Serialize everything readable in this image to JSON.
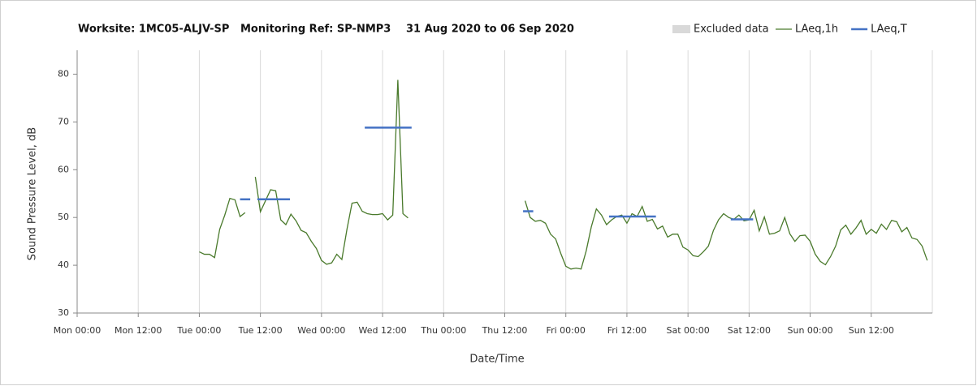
{
  "chart_data": {
    "type": "line",
    "title_parts": [
      "Worksite: 1MC05-ALJV-SP",
      "Monitoring Ref: SP-NMP3",
      "31 Aug 2020 to 06 Sep 2020"
    ],
    "x_label": "Date/Time",
    "y_label": "Sound Pressure Level, dB",
    "excluded": {
      "name": "Excluded data",
      "color": "#d9d9d9"
    },
    "x": [
      24,
      25,
      26,
      27,
      28,
      29,
      30,
      31,
      32,
      33,
      34,
      35,
      36,
      37,
      38,
      39,
      40,
      41,
      42,
      43,
      44,
      45,
      46,
      47,
      48,
      49,
      50,
      51,
      52,
      53,
      54,
      55,
      56,
      57,
      58,
      59,
      60,
      61,
      62,
      63,
      64,
      65,
      66,
      67,
      68,
      69,
      70,
      71,
      72,
      73,
      74,
      75,
      76,
      77,
      78,
      79,
      80,
      81,
      82,
      83,
      84,
      85,
      86,
      87,
      88,
      89,
      90,
      91,
      92,
      93,
      94,
      95,
      96,
      97,
      98,
      99,
      100,
      101,
      102,
      103,
      104,
      105,
      106,
      107,
      108,
      109,
      110,
      111,
      112,
      113,
      114,
      115,
      116,
      117,
      118,
      119,
      120,
      121,
      122,
      123,
      124,
      125,
      126,
      127,
      128,
      129,
      130,
      131,
      132,
      133,
      134,
      135,
      136,
      137,
      138,
      139,
      140,
      141,
      142,
      143,
      144,
      145,
      146,
      147,
      148,
      149,
      150,
      151,
      152,
      153,
      154,
      155,
      156,
      157,
      158,
      159,
      160,
      161,
      162,
      163,
      164,
      165,
      166,
      167
    ],
    "series": [
      {
        "name": "LAeq,1h",
        "color": "#4a7a2c",
        "values": [
          42.8,
          42.3,
          42.3,
          41.6,
          47.5,
          50.5,
          54,
          53.7,
          50.2,
          51,
          null,
          58.5,
          51.2,
          53.5,
          55.8,
          55.6,
          49.5,
          48.5,
          50.7,
          49.3,
          47.3,
          46.8,
          45,
          43.5,
          41,
          40.2,
          40.5,
          42.3,
          41.2,
          47.5,
          53,
          53.2,
          51.3,
          50.8,
          50.6,
          50.6,
          50.8,
          49.5,
          50.5,
          78.8,
          50.8,
          49.9,
          null,
          null,
          null,
          null,
          null,
          null,
          null,
          null,
          null,
          null,
          null,
          null,
          null,
          null,
          null,
          null,
          null,
          null,
          null,
          null,
          null,
          null,
          53.5,
          50,
          49.2,
          49.4,
          48.8,
          46.5,
          45.5,
          42.5,
          39.8,
          39.2,
          39.4,
          39.2,
          43,
          48,
          51.8,
          50.5,
          48.5,
          49.5,
          50.2,
          50.5,
          48.8,
          50.8,
          50.2,
          52.3,
          49.2,
          49.6,
          47.6,
          48.2,
          45.9,
          46.5,
          46.5,
          43.8,
          43.2,
          42,
          41.8,
          42.8,
          44,
          47.3,
          49.5,
          50.8,
          50,
          49.6,
          50.5,
          49.3,
          49.5,
          51.5,
          47.2,
          50.1,
          46.5,
          46.7,
          47.2,
          50,
          46.6,
          45,
          46.2,
          46.3,
          45,
          42.3,
          40.8,
          40.1,
          41.8,
          44,
          47.4,
          48.4,
          46.5,
          47.8,
          49.4,
          46.5,
          47.5,
          46.7,
          48.6,
          47.5,
          49.4,
          49.1,
          47,
          47.9,
          45.7,
          45.4,
          44,
          41
        ]
      },
      {
        "name": "LAeq,T",
        "color": "#4472c4",
        "segments": [
          {
            "x": [
              32,
              34
            ],
            "value": 53.8
          },
          {
            "x": [
              35.4,
              41.8
            ],
            "value": 53.8
          },
          {
            "x": [
              56.5,
              65.7
            ],
            "value": 68.8
          },
          {
            "x": [
              87.6,
              89.6
            ],
            "value": 51.3
          },
          {
            "x": [
              104.5,
              113.7
            ],
            "value": 50.2
          },
          {
            "x": [
              128.4,
              132.8
            ],
            "value": 49.6
          }
        ]
      }
    ],
    "xlim": [
      0,
      168
    ],
    "xticks": [
      {
        "value": 0,
        "label": "Mon 00:00"
      },
      {
        "value": 12,
        "label": "Mon 12:00"
      },
      {
        "value": 24,
        "label": "Tue 00:00"
      },
      {
        "value": 36,
        "label": "Tue 12:00"
      },
      {
        "value": 48,
        "label": "Wed 00:00"
      },
      {
        "value": 60,
        "label": "Wed 12:00"
      },
      {
        "value": 72,
        "label": "Thu 00:00"
      },
      {
        "value": 84,
        "label": "Thu 12:00"
      },
      {
        "value": 96,
        "label": "Fri 00:00"
      },
      {
        "value": 108,
        "label": "Fri 12:00"
      },
      {
        "value": 120,
        "label": "Sat 00:00"
      },
      {
        "value": 132,
        "label": "Sat 12:00"
      },
      {
        "value": 144,
        "label": "Sun 00:00"
      },
      {
        "value": 156,
        "label": "Sun 12:00"
      }
    ],
    "ylim": [
      30,
      85
    ],
    "yticks": [
      30,
      40,
      50,
      60,
      70,
      80
    ],
    "grid": true
  }
}
